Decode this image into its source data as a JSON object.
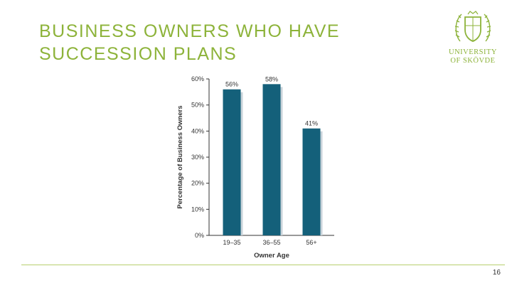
{
  "slide": {
    "title_lines": [
      "BUSINESS OWNERS WHO HAVE",
      "SUCCESSION PLANS"
    ],
    "logo": {
      "line1": "UNIVERSITY",
      "line2": "OF SKÖVDE",
      "icon": "university-crest-icon"
    },
    "page_number": "16",
    "colors": {
      "title": "#8db33a",
      "bar": "#14607a",
      "shadow": "#c9d3da",
      "footer_line": "#b7cf6e"
    }
  },
  "chart_data": {
    "type": "bar",
    "categories": [
      "19–35",
      "36–55",
      "56+"
    ],
    "values": [
      56,
      58,
      41
    ],
    "value_labels": [
      "56%",
      "58%",
      "41%"
    ],
    "xlabel": "Owner Age",
    "ylabel": "Percentage of Business Owners",
    "ylim": [
      0,
      60
    ],
    "yticks": [
      "0%",
      "10%",
      "20%",
      "30%",
      "40%",
      "50%",
      "60%"
    ],
    "grid": false
  }
}
